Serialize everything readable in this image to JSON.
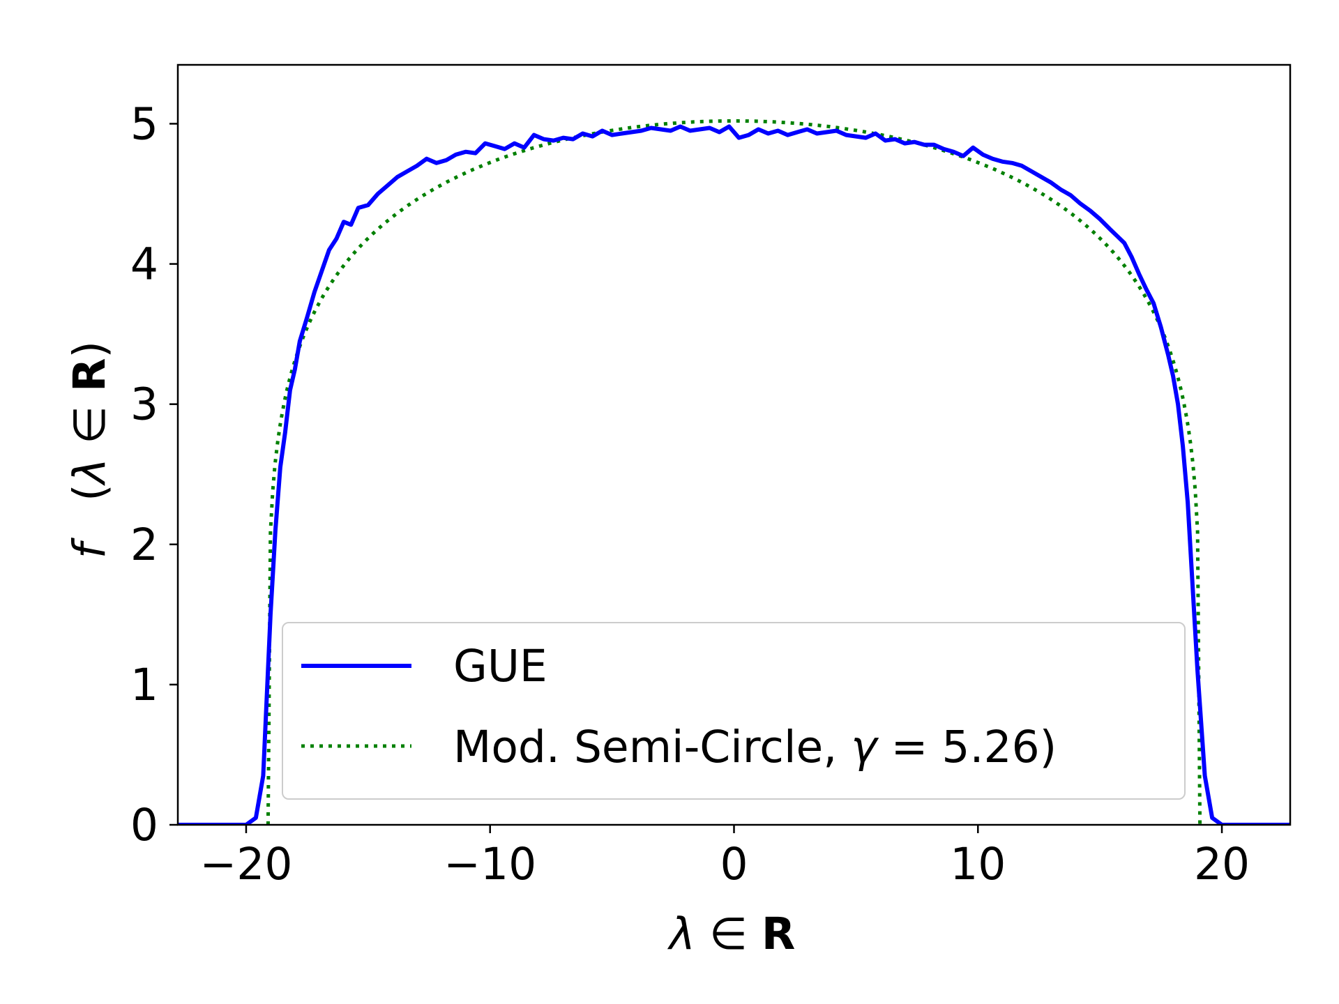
{
  "chart_data": {
    "type": "line",
    "xlabel": "λ ∈ R",
    "ylabel": "f   (λ ∈ R)",
    "xlim": [
      -22.8,
      22.8
    ],
    "ylim": [
      0,
      5.42
    ],
    "xticks": [
      -20,
      -10,
      0,
      10,
      20
    ],
    "xtick_labels": [
      "−20",
      "−10",
      "0",
      "10",
      "20"
    ],
    "yticks": [
      0,
      1,
      2,
      3,
      4,
      5
    ],
    "ytick_labels": [
      "0",
      "1",
      "2",
      "3",
      "4",
      "5"
    ],
    "grid": false,
    "legend_position": "bottom-center",
    "series": [
      {
        "name": "GUE",
        "style": "solid",
        "color": "#0000ff",
        "x": [
          -22.8,
          -20.0,
          -19.6,
          -19.3,
          -19.0,
          -18.8,
          -18.6,
          -18.4,
          -18.2,
          -18.0,
          -17.8,
          -17.5,
          -17.2,
          -16.9,
          -16.6,
          -16.3,
          -16.0,
          -15.7,
          -15.4,
          -15.0,
          -14.6,
          -14.2,
          -13.8,
          -13.4,
          -13.0,
          -12.6,
          -12.2,
          -11.8,
          -11.4,
          -11.0,
          -10.6,
          -10.2,
          -9.8,
          -9.4,
          -9.0,
          -8.6,
          -8.2,
          -7.8,
          -7.4,
          -7.0,
          -6.6,
          -6.2,
          -5.8,
          -5.4,
          -5.0,
          -4.6,
          -4.2,
          -3.8,
          -3.4,
          -3.0,
          -2.6,
          -2.2,
          -1.8,
          -1.4,
          -1.0,
          -0.6,
          -0.2,
          0.2,
          0.6,
          1.0,
          1.4,
          1.8,
          2.2,
          2.6,
          3.0,
          3.4,
          3.8,
          4.2,
          4.6,
          5.0,
          5.4,
          5.8,
          6.2,
          6.6,
          7.0,
          7.4,
          7.8,
          8.2,
          8.6,
          9.0,
          9.4,
          9.8,
          10.2,
          10.6,
          11.0,
          11.4,
          11.8,
          12.2,
          12.6,
          13.0,
          13.4,
          13.8,
          14.2,
          14.6,
          15.0,
          15.4,
          15.7,
          16.0,
          16.3,
          16.6,
          16.9,
          17.2,
          17.5,
          17.8,
          18.0,
          18.2,
          18.4,
          18.6,
          18.8,
          19.0,
          19.3,
          19.6,
          20.0,
          22.8
        ],
        "y": [
          0.0,
          0.0,
          0.05,
          0.35,
          1.5,
          2.1,
          2.55,
          2.8,
          3.1,
          3.25,
          3.45,
          3.62,
          3.8,
          3.95,
          4.1,
          4.18,
          4.3,
          4.28,
          4.4,
          4.42,
          4.5,
          4.56,
          4.62,
          4.66,
          4.7,
          4.75,
          4.72,
          4.74,
          4.78,
          4.8,
          4.79,
          4.86,
          4.84,
          4.82,
          4.86,
          4.83,
          4.92,
          4.89,
          4.88,
          4.9,
          4.89,
          4.93,
          4.91,
          4.95,
          4.92,
          4.93,
          4.94,
          4.95,
          4.97,
          4.96,
          4.95,
          4.98,
          4.95,
          4.96,
          4.97,
          4.94,
          4.98,
          4.9,
          4.92,
          4.96,
          4.93,
          4.95,
          4.92,
          4.94,
          4.96,
          4.93,
          4.94,
          4.95,
          4.92,
          4.91,
          4.9,
          4.93,
          4.88,
          4.89,
          4.86,
          4.87,
          4.85,
          4.85,
          4.82,
          4.8,
          4.77,
          4.83,
          4.78,
          4.75,
          4.73,
          4.72,
          4.7,
          4.66,
          4.62,
          4.58,
          4.53,
          4.49,
          4.43,
          4.38,
          4.32,
          4.25,
          4.2,
          4.15,
          4.05,
          3.93,
          3.82,
          3.72,
          3.55,
          3.35,
          3.2,
          3.0,
          2.7,
          2.3,
          1.7,
          1.1,
          0.35,
          0.05,
          0.0,
          0.0
        ]
      },
      {
        "name": "Mod. Semi-Circle, γ = 5.26)",
        "style": "dotted",
        "color": "#008000",
        "model": "modified semicircle",
        "gamma": 5.26,
        "peak": 5.02,
        "support": [
          -19.1,
          19.1
        ]
      }
    ]
  }
}
